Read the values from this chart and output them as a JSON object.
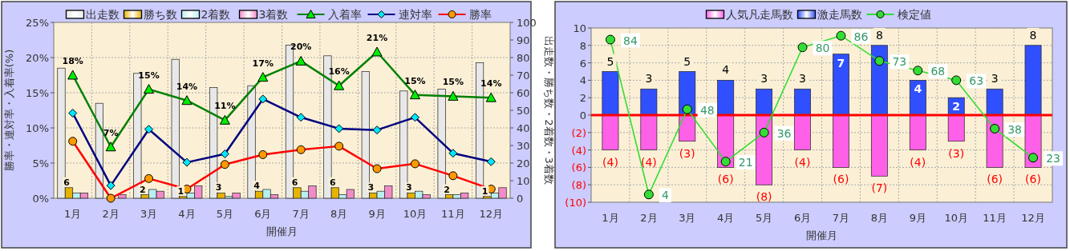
{
  "chart_data": [
    {
      "type": "bar",
      "categories": [
        "1月",
        "2月",
        "3月",
        "4月",
        "5月",
        "6月",
        "7月",
        "8月",
        "9月",
        "10月",
        "11月",
        "12月"
      ],
      "xlabel": "開催月",
      "ylabel": "勝率・連対率・入着率(%)",
      "y2label": "出走数・勝ち数・2着数・3着数",
      "ylim": [
        0,
        25
      ],
      "yticks": [
        {
          "value": 0,
          "label": "0%"
        },
        {
          "value": 5,
          "label": "5%"
        },
        {
          "value": 10,
          "label": "10%"
        },
        {
          "value": 15,
          "label": "15%"
        },
        {
          "value": 20,
          "label": "20%"
        },
        {
          "value": 25,
          "label": "25%"
        }
      ],
      "y2lim": [
        0,
        100
      ],
      "y2ticks": [
        0,
        10,
        20,
        30,
        40,
        50,
        60,
        70,
        80,
        90,
        100
      ],
      "grid": true,
      "legend": "top",
      "series": [
        {
          "name": "出走数",
          "color": "#e8e8e8",
          "axis": "y2",
          "values": [
            74,
            54,
            71,
            79,
            63,
            64,
            87,
            81,
            72,
            61,
            62,
            77
          ]
        },
        {
          "name": "勝ち数",
          "color": "#e6b400",
          "axis": "y2",
          "values": [
            6,
            0,
            2,
            1,
            3,
            4,
            6,
            6,
            3,
            3,
            2,
            1
          ],
          "value_labels": [
            "6",
            null,
            "2",
            "1",
            "3",
            "4",
            "6",
            "6",
            "3",
            "3",
            "2",
            "1"
          ]
        },
        {
          "name": "2着数",
          "color": "#b8f0f0",
          "axis": "y2",
          "values": [
            3,
            0,
            5,
            3,
            1,
            5,
            4,
            2,
            4,
            4,
            2,
            3
          ]
        },
        {
          "name": "3着数",
          "color": "#f08cc8",
          "axis": "y2",
          "values": [
            3,
            2,
            4,
            7,
            3,
            2,
            7,
            5,
            7,
            2,
            3,
            6
          ]
        },
        {
          "name": "入着率",
          "type": "line",
          "color": "#008000",
          "marker": "triangle",
          "values": [
            17.5,
            7.3,
            15.5,
            13.9,
            11.1,
            17.2,
            19.5,
            16.0,
            20.8,
            14.7,
            14.5,
            14.3
          ],
          "value_labels": [
            "18%",
            "7%",
            "15%",
            "14%",
            "11%",
            "17%",
            "20%",
            "16%",
            "21%",
            "15%",
            "15%",
            "14%"
          ]
        },
        {
          "name": "連対率",
          "type": "line",
          "color": "#000080",
          "marker": "diamond",
          "values": [
            12.1,
            1.8,
            9.8,
            5.1,
            6.3,
            14.1,
            11.5,
            9.9,
            9.7,
            11.5,
            6.4,
            5.2
          ]
        },
        {
          "name": "勝率",
          "type": "line",
          "color": "#ff0000",
          "marker": "circle",
          "values": [
            8.1,
            0,
            2.8,
            1.3,
            4.8,
            6.2,
            6.9,
            7.4,
            4.2,
            4.9,
            3.2,
            1.3
          ]
        }
      ]
    },
    {
      "type": "bar",
      "stacked": true,
      "categories": [
        "1月",
        "2月",
        "3月",
        "4月",
        "5月",
        "6月",
        "7月",
        "8月",
        "9月",
        "10月",
        "11月",
        "12月"
      ],
      "xlabel": "開催月",
      "ylim": [
        -10,
        10
      ],
      "yticks": [
        {
          "value": 10,
          "label": "10"
        },
        {
          "value": 8,
          "label": "8"
        },
        {
          "value": 6,
          "label": "6"
        },
        {
          "value": 4,
          "label": "4"
        },
        {
          "value": 2,
          "label": "2"
        },
        {
          "value": 0,
          "label": "0"
        },
        {
          "value": -2,
          "label": "(2)"
        },
        {
          "value": -4,
          "label": "(4)"
        },
        {
          "value": -6,
          "label": "(6)"
        },
        {
          "value": -8,
          "label": "(8)"
        },
        {
          "value": -10,
          "label": "(10)"
        }
      ],
      "y2lim": [
        0,
        90
      ],
      "grid": true,
      "legend": "top",
      "ref_lines": [
        {
          "axis": "y",
          "value": 0,
          "color": "#ff0000"
        }
      ],
      "series": [
        {
          "name": "人気凡走馬数",
          "color": "#ff60e8",
          "values": [
            -4,
            -4,
            -3,
            -6,
            -8,
            -4,
            -6,
            -7,
            -4,
            -3,
            -6,
            -6
          ],
          "value_labels": [
            "(4)",
            "(4)",
            "(3)",
            "(6)",
            "(8)",
            "(4)",
            "(6)",
            "(7)",
            "(4)",
            "(3)",
            "(6)",
            "(6)"
          ]
        },
        {
          "name": "激走馬数",
          "color": "#3050ff",
          "values": [
            5,
            3,
            5,
            4,
            3,
            3,
            7,
            8,
            4,
            2,
            3,
            8
          ],
          "value_labels": [
            "5",
            "3",
            "5",
            "4",
            "3",
            "3",
            "7",
            "8",
            "4",
            "2",
            "3",
            "8"
          ]
        },
        {
          "name": "検定値",
          "type": "line",
          "axis": "y2",
          "color": "#33dd33",
          "marker": "circle",
          "values": [
            84,
            4,
            48,
            21,
            36,
            80,
            86,
            73,
            68,
            63,
            38,
            23
          ],
          "value_labels": [
            "84",
            "4",
            "48",
            "21",
            "36",
            "80",
            "86",
            "73",
            "68",
            "63",
            "38",
            "23"
          ]
        }
      ]
    }
  ]
}
